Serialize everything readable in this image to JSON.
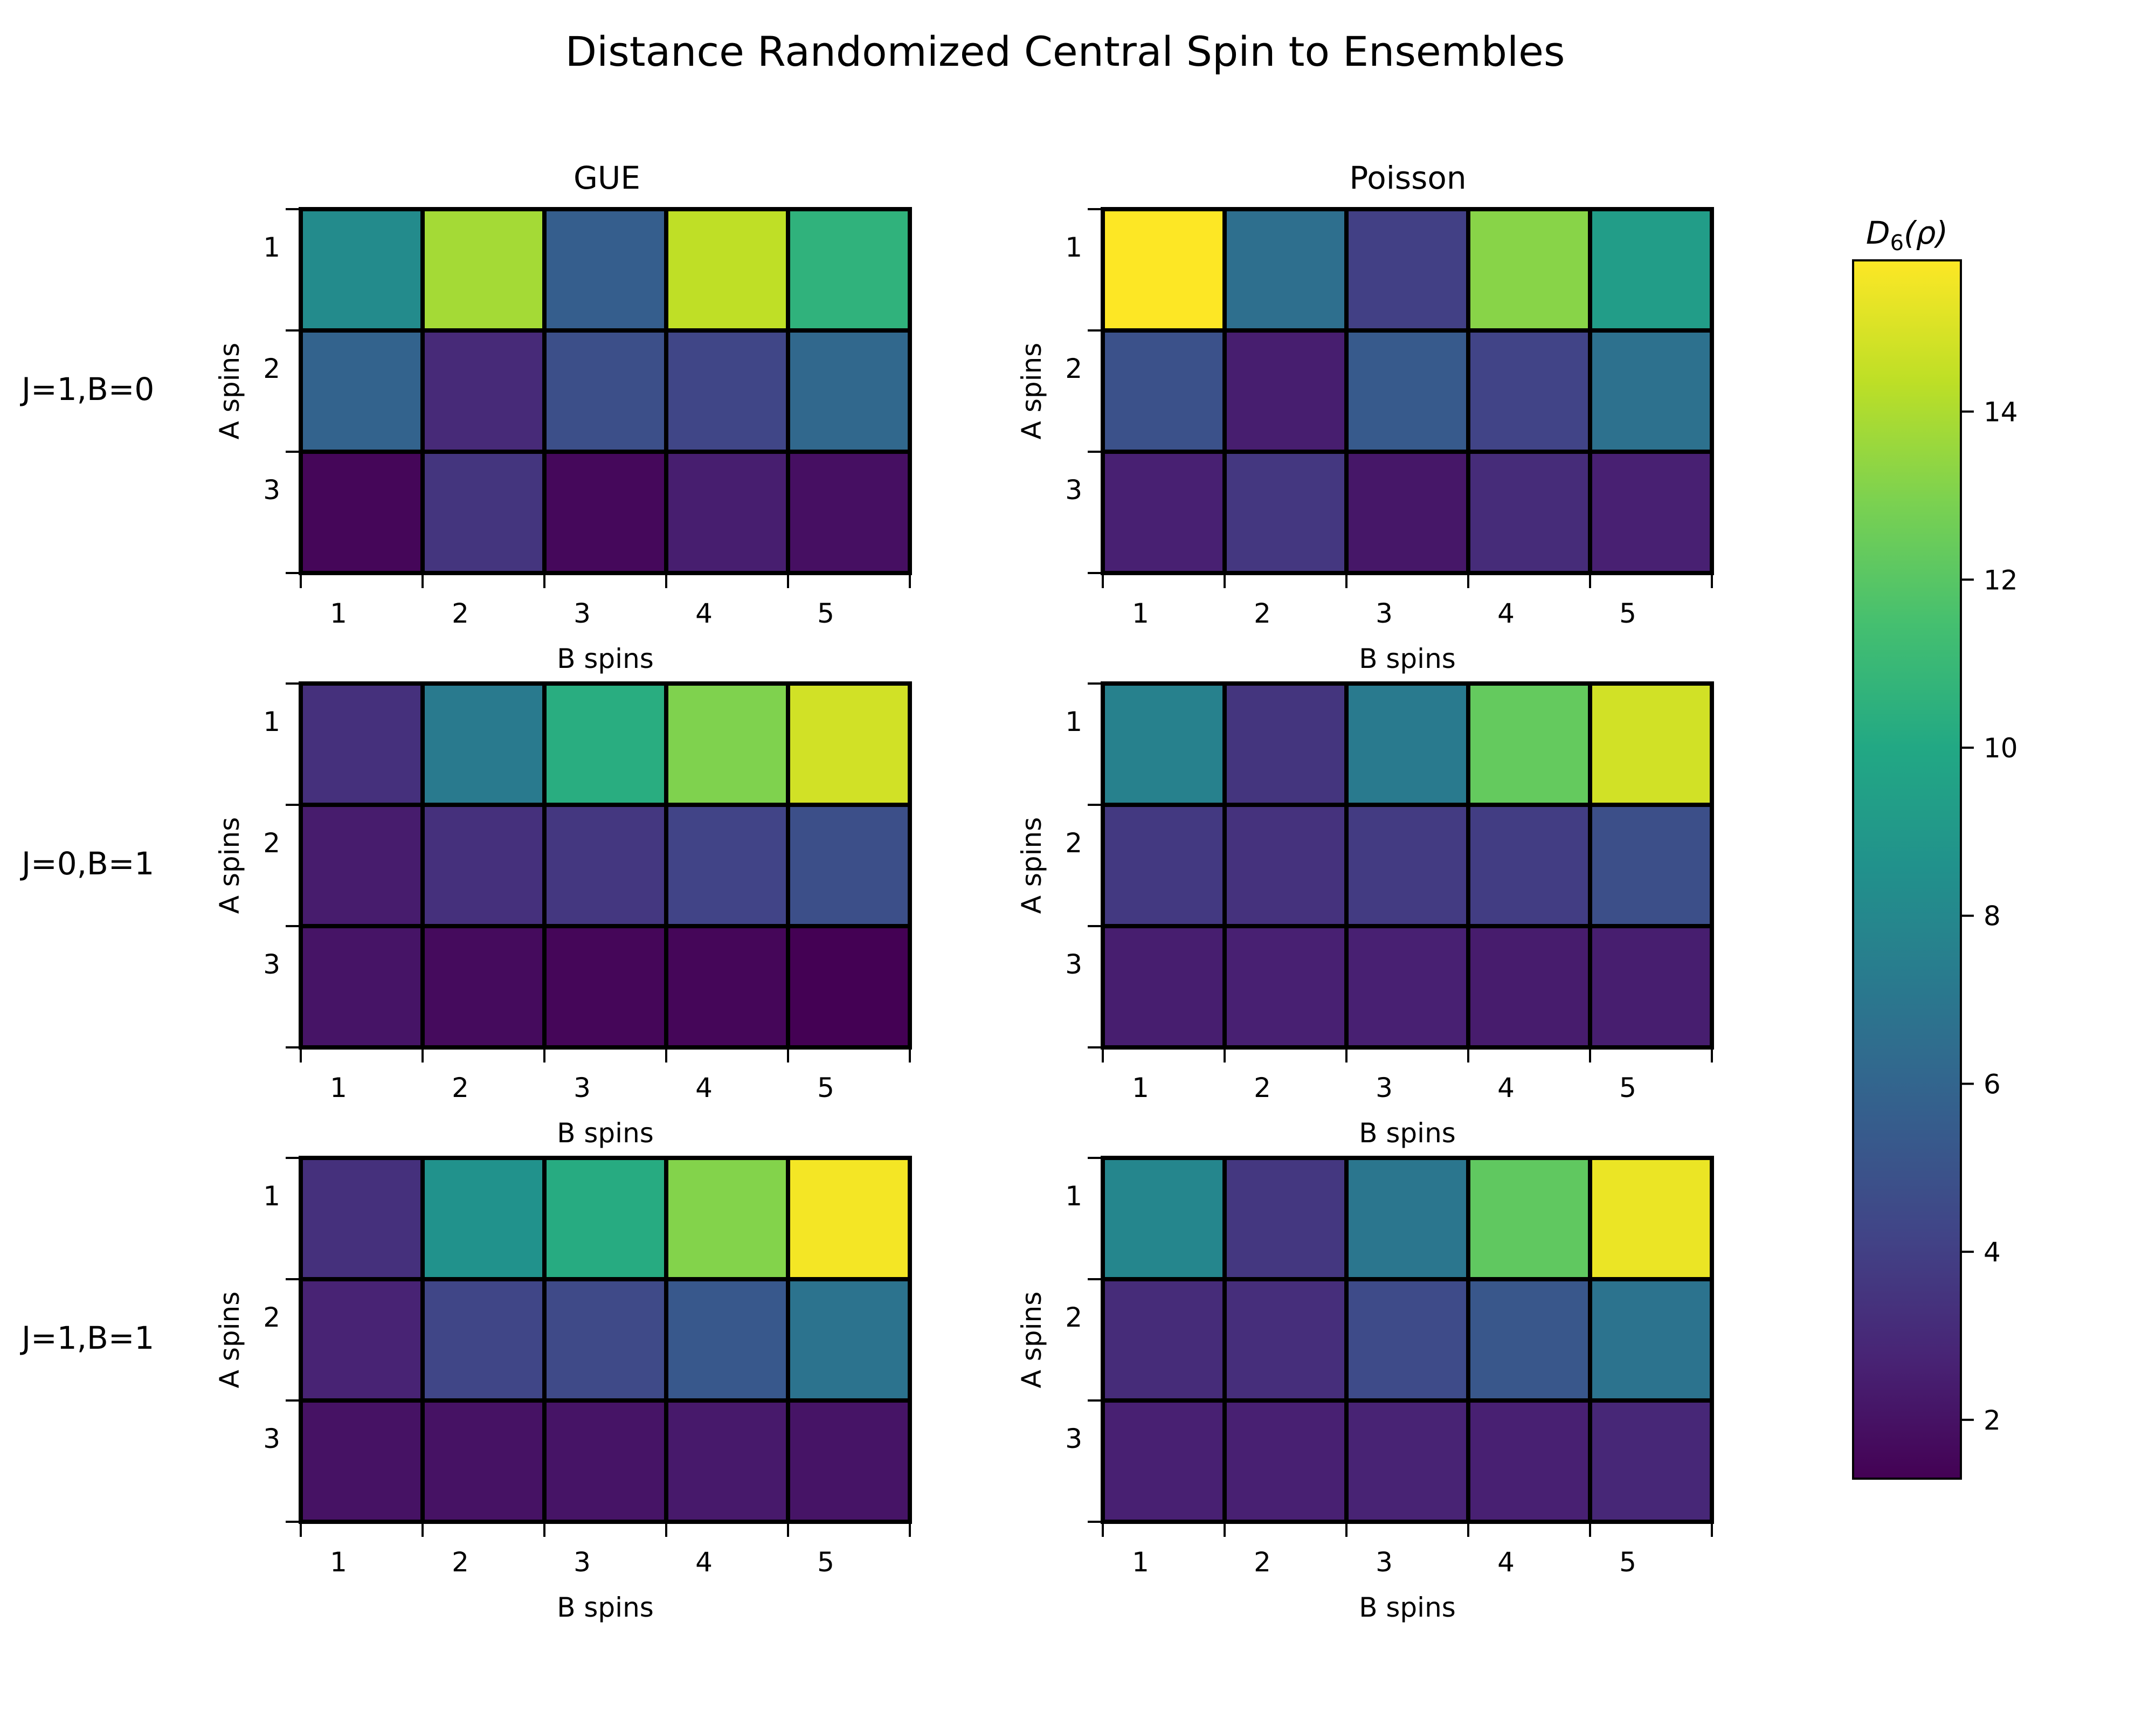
{
  "chart_data": {
    "type": "heatmap",
    "title": "Distance Randomized Central Spin to Ensembles",
    "columns": [
      "GUE",
      "Poisson"
    ],
    "rows": [
      "J=1,B=0",
      "J=0,B=1",
      "J=1,B=1"
    ],
    "xlabel": "B spins",
    "ylabel": "A spins",
    "x_ticks": [
      "1",
      "2",
      "3",
      "4",
      "5"
    ],
    "y_ticks": [
      "1",
      "2",
      "3"
    ],
    "colorbar": {
      "label": "D₆(ρ)",
      "label_base": "D",
      "label_sub": "6",
      "label_arg": "(ρ)",
      "colormap": "viridis",
      "vmin": 1.3,
      "vmax": 15.8,
      "ticks": [
        "2",
        "4",
        "6",
        "8",
        "10",
        "12",
        "14"
      ]
    },
    "panels": [
      {
        "row": "J=1,B=0",
        "column": "GUE",
        "values": [
          [
            8.2,
            13.8,
            5.6,
            14.4,
            10.6
          ],
          [
            5.9,
            3.0,
            4.8,
            4.3,
            6.2
          ],
          [
            1.5,
            3.5,
            1.6,
            2.5,
            1.9
          ]
        ]
      },
      {
        "row": "J=1,B=0",
        "column": "Poisson",
        "values": [
          [
            15.8,
            6.6,
            4.0,
            13.2,
            9.3
          ],
          [
            4.9,
            2.5,
            5.4,
            4.2,
            6.7
          ],
          [
            2.6,
            3.6,
            2.2,
            3.1,
            2.6
          ]
        ]
      },
      {
        "row": "J=0,B=1",
        "column": "GUE",
        "values": [
          [
            3.3,
            7.2,
            10.3,
            13.0,
            14.8
          ],
          [
            2.4,
            3.3,
            3.6,
            4.2,
            4.8
          ],
          [
            2.1,
            1.7,
            1.5,
            1.5,
            1.3
          ]
        ]
      },
      {
        "row": "J=0,B=1",
        "column": "Poisson",
        "values": [
          [
            7.6,
            3.5,
            7.2,
            12.3,
            14.8
          ],
          [
            3.7,
            3.4,
            3.8,
            3.9,
            4.8
          ],
          [
            2.5,
            2.6,
            2.6,
            2.4,
            2.5
          ]
        ]
      },
      {
        "row": "J=1,B=1",
        "column": "GUE",
        "values": [
          [
            3.3,
            8.6,
            10.2,
            13.1,
            15.6
          ],
          [
            2.7,
            4.3,
            4.5,
            5.3,
            6.8
          ],
          [
            2.0,
            2.0,
            2.1,
            2.3,
            2.1
          ]
        ]
      },
      {
        "row": "J=1,B=1",
        "column": "Poisson",
        "values": [
          [
            7.9,
            3.6,
            7.0,
            12.2,
            15.4
          ],
          [
            3.1,
            3.2,
            4.6,
            5.2,
            6.8
          ],
          [
            2.6,
            2.6,
            2.7,
            2.6,
            2.9
          ]
        ]
      }
    ]
  }
}
